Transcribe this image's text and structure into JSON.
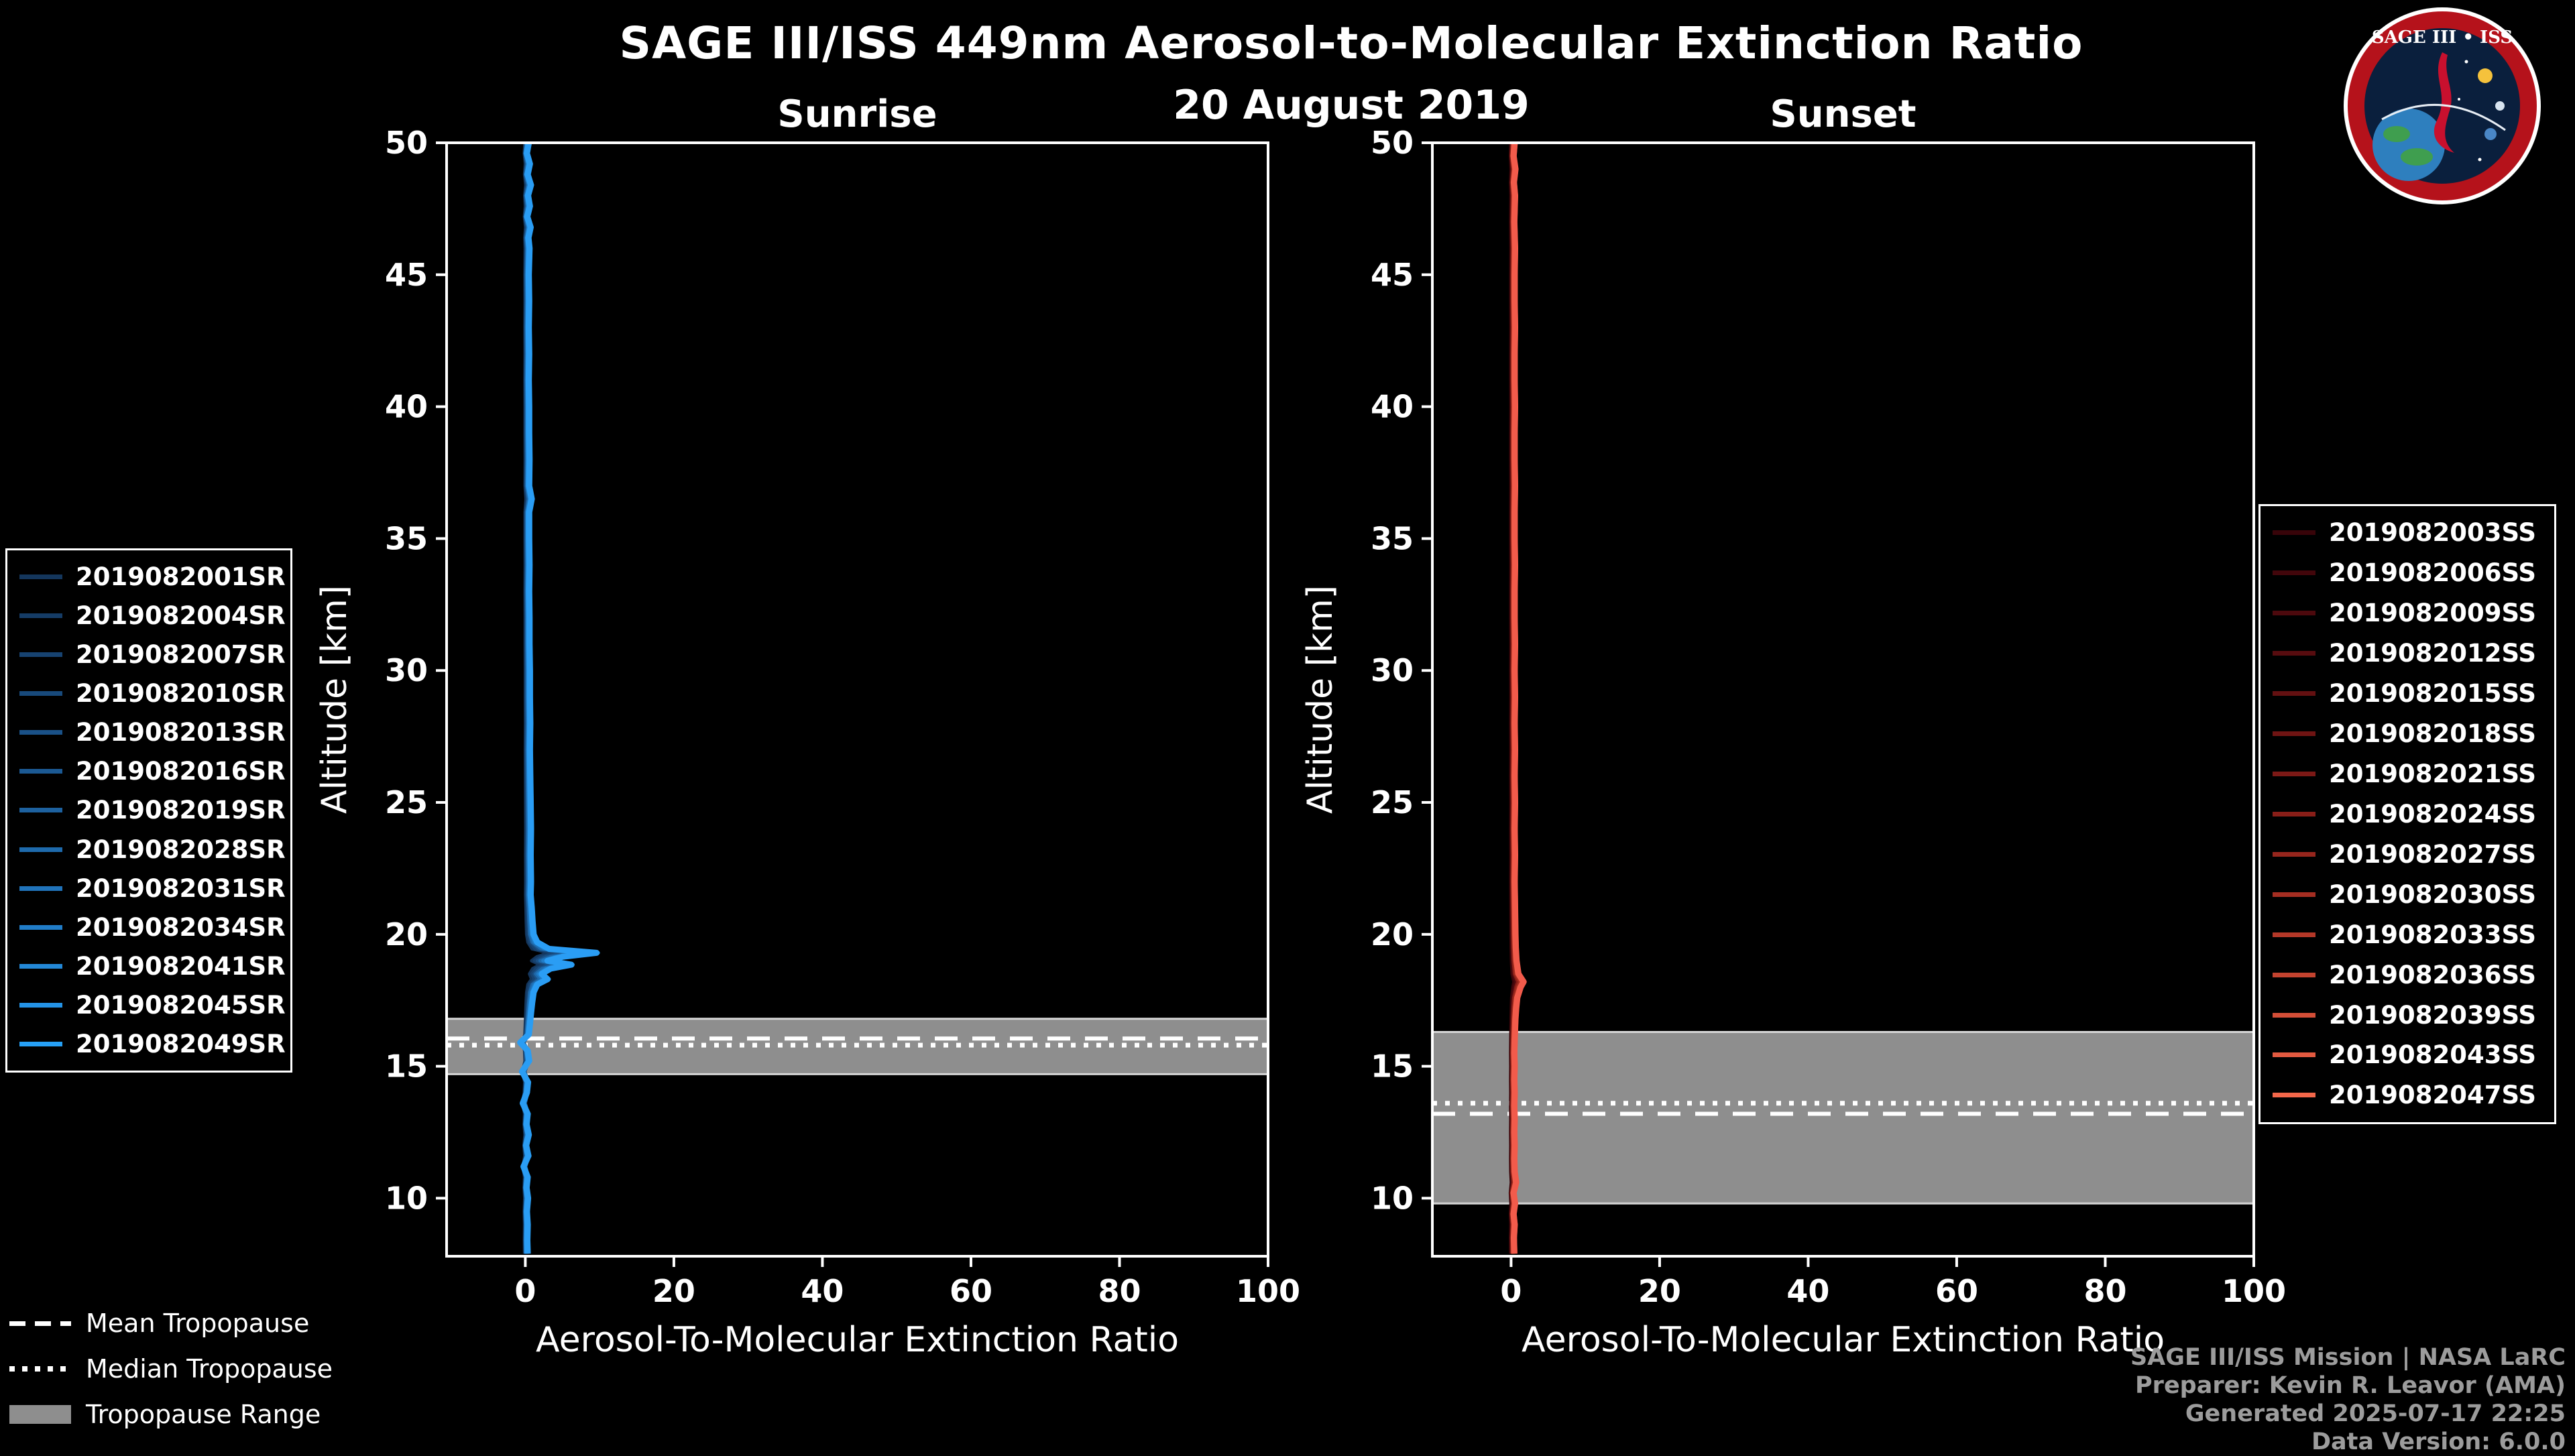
{
  "title": "SAGE III/ISS 449nm Aerosol-to-Molecular Extinction Ratio",
  "date": "20 August 2019",
  "logo": {
    "text": "SAGE III • ISS"
  },
  "tropopause_legend": [
    {
      "label": "Mean Tropopause",
      "style": "dashed"
    },
    {
      "label": "Median Tropopause",
      "style": "dotted"
    },
    {
      "label": "Tropopause Range",
      "style": "band"
    }
  ],
  "footer": {
    "line1": "SAGE III/ISS Mission | NASA LaRC",
    "line2": "Preparer: Kevin R. Leavor (AMA)",
    "line3": "Generated 2025-07-17 22:25",
    "line4": "Data Version: 6.0.0"
  },
  "chart_data": [
    {
      "type": "line",
      "panel": "Sunrise",
      "xlabel": "Aerosol-To-Molecular Extinction Ratio",
      "ylabel": "Altitude [km]",
      "xlim": [
        -10.6,
        100
      ],
      "ylim": [
        7.8,
        50
      ],
      "xticks": [
        0,
        20,
        40,
        60,
        80,
        100
      ],
      "yticks": [
        10,
        15,
        20,
        25,
        30,
        35,
        40,
        45,
        50
      ],
      "band_color": "#8e8e8e",
      "line_color": "#2a9df4",
      "tropopause": {
        "mean": 16.05,
        "median": 15.8,
        "range": [
          14.7,
          16.8
        ]
      },
      "series": [
        {
          "name": "2019082001SR",
          "color": "#14365c"
        },
        {
          "name": "2019082004SR",
          "color": "#153c66"
        },
        {
          "name": "2019082007SR",
          "color": "#174371"
        },
        {
          "name": "2019082010SR",
          "color": "#184a7c"
        },
        {
          "name": "2019082013SR",
          "color": "#1a5187"
        },
        {
          "name": "2019082016SR",
          "color": "#1b5993"
        },
        {
          "name": "2019082019SR",
          "color": "#1d619f"
        },
        {
          "name": "2019082028SR",
          "color": "#1e6aac"
        },
        {
          "name": "2019082031SR",
          "color": "#2073ba"
        },
        {
          "name": "2019082034SR",
          "color": "#217dc8"
        },
        {
          "name": "2019082041SR",
          "color": "#2388d7"
        },
        {
          "name": "2019082045SR",
          "color": "#2493e6"
        },
        {
          "name": "2019082049SR",
          "color": "#26a0f5"
        }
      ],
      "profile": [
        [
          50,
          0.45
        ],
        [
          49.6,
          0.2
        ],
        [
          49.2,
          0.6
        ],
        [
          48.8,
          0.3
        ],
        [
          48.4,
          0.75
        ],
        [
          48,
          0.35
        ],
        [
          47.6,
          0.6
        ],
        [
          47.2,
          0.25
        ],
        [
          46.8,
          0.7
        ],
        [
          46.4,
          0.4
        ],
        [
          46,
          0.55
        ],
        [
          45,
          0.45
        ],
        [
          44,
          0.5
        ],
        [
          43,
          0.45
        ],
        [
          42,
          0.5
        ],
        [
          41,
          0.45
        ],
        [
          40,
          0.5
        ],
        [
          39,
          0.5
        ],
        [
          38,
          0.55
        ],
        [
          37,
          0.5
        ],
        [
          36.5,
          0.85
        ],
        [
          36,
          0.5
        ],
        [
          35,
          0.5
        ],
        [
          34,
          0.55
        ],
        [
          33,
          0.5
        ],
        [
          32,
          0.55
        ],
        [
          31,
          0.55
        ],
        [
          30,
          0.6
        ],
        [
          29,
          0.6
        ],
        [
          28,
          0.65
        ],
        [
          27,
          0.6
        ],
        [
          26,
          0.65
        ],
        [
          25,
          0.7
        ],
        [
          24,
          0.75
        ],
        [
          23,
          0.7
        ],
        [
          22,
          0.75
        ],
        [
          21.5,
          0.7
        ],
        [
          21,
          0.85
        ],
        [
          20.5,
          0.95
        ],
        [
          20,
          1.1
        ],
        [
          19.7,
          1.6
        ],
        [
          19.45,
          3.2
        ],
        [
          19.3,
          9.6
        ],
        [
          19.15,
          5.0
        ],
        [
          19,
          3.0
        ],
        [
          18.85,
          6.2
        ],
        [
          18.7,
          3.4
        ],
        [
          18.5,
          2.2
        ],
        [
          18.3,
          3.0
        ],
        [
          18.1,
          1.6
        ],
        [
          17.8,
          1.1
        ],
        [
          17.4,
          0.9
        ],
        [
          17,
          0.75
        ],
        [
          16.6,
          0.6
        ],
        [
          16.2,
          0.45
        ],
        [
          15.9,
          -0.7
        ],
        [
          15.6,
          0.3
        ],
        [
          15.2,
          0.5
        ],
        [
          14.8,
          -0.45
        ],
        [
          14.4,
          0.35
        ],
        [
          14,
          0.2
        ],
        [
          13.6,
          -0.35
        ],
        [
          13.2,
          0.3
        ],
        [
          12.8,
          0.15
        ],
        [
          12.4,
          0.45
        ],
        [
          12,
          0.1
        ],
        [
          11.6,
          0.4
        ],
        [
          11.2,
          -0.25
        ],
        [
          10.8,
          0.3
        ],
        [
          10.4,
          0.15
        ],
        [
          10,
          0.35
        ],
        [
          9.5,
          0.2
        ],
        [
          9,
          0.3
        ],
        [
          8.4,
          0.25
        ],
        [
          7.9,
          0.3
        ]
      ]
    },
    {
      "type": "line",
      "panel": "Sunset",
      "xlabel": "Aerosol-To-Molecular Extinction Ratio",
      "ylabel": "Altitude [km]",
      "xlim": [
        -10.6,
        100
      ],
      "ylim": [
        7.8,
        50
      ],
      "xticks": [
        0,
        20,
        40,
        60,
        80,
        100
      ],
      "yticks": [
        10,
        15,
        20,
        25,
        30,
        35,
        40,
        45,
        50
      ],
      "band_color": "#8e8e8e",
      "line_color": "#f25b4b",
      "tropopause": {
        "mean": 13.2,
        "median": 13.6,
        "range": [
          9.8,
          16.3
        ]
      },
      "series": [
        {
          "name": "2019082003SS",
          "color": "#380409"
        },
        {
          "name": "2019082006SS",
          "color": "#42060b"
        },
        {
          "name": "2019082009SS",
          "color": "#4c090d"
        },
        {
          "name": "2019082012SS",
          "color": "#570c0f"
        },
        {
          "name": "2019082015SS",
          "color": "#631011"
        },
        {
          "name": "2019082018SS",
          "color": "#6f1413"
        },
        {
          "name": "2019082021SS",
          "color": "#7c1916"
        },
        {
          "name": "2019082024SS",
          "color": "#891e18"
        },
        {
          "name": "2019082027SS",
          "color": "#97261d"
        },
        {
          "name": "2019082030SS",
          "color": "#a52e22"
        },
        {
          "name": "2019082033SS",
          "color": "#b43828"
        },
        {
          "name": "2019082036SS",
          "color": "#c3432f"
        },
        {
          "name": "2019082039SS",
          "color": "#d34e37"
        },
        {
          "name": "2019082043SS",
          "color": "#e35a40"
        },
        {
          "name": "2019082047SS",
          "color": "#f3674a"
        }
      ],
      "profile": [
        [
          50,
          0.5
        ],
        [
          49.5,
          0.35
        ],
        [
          49,
          0.6
        ],
        [
          48.5,
          0.4
        ],
        [
          48,
          0.55
        ],
        [
          47,
          0.45
        ],
        [
          46,
          0.55
        ],
        [
          45,
          0.5
        ],
        [
          44,
          0.5
        ],
        [
          43,
          0.55
        ],
        [
          42,
          0.5
        ],
        [
          41,
          0.5
        ],
        [
          40,
          0.55
        ],
        [
          39,
          0.5
        ],
        [
          38,
          0.5
        ],
        [
          37,
          0.55
        ],
        [
          36,
          0.5
        ],
        [
          35,
          0.5
        ],
        [
          34,
          0.55
        ],
        [
          33,
          0.5
        ],
        [
          32,
          0.5
        ],
        [
          31,
          0.55
        ],
        [
          30,
          0.5
        ],
        [
          29,
          0.55
        ],
        [
          28,
          0.5
        ],
        [
          27,
          0.55
        ],
        [
          26,
          0.5
        ],
        [
          25,
          0.55
        ],
        [
          24,
          0.5
        ],
        [
          23,
          0.55
        ],
        [
          22,
          0.5
        ],
        [
          21,
          0.55
        ],
        [
          20,
          0.6
        ],
        [
          19.5,
          0.65
        ],
        [
          19,
          0.75
        ],
        [
          18.5,
          1.0
        ],
        [
          18.2,
          1.7
        ],
        [
          18,
          1.3
        ],
        [
          17.6,
          0.85
        ],
        [
          17.2,
          0.7
        ],
        [
          16.8,
          0.6
        ],
        [
          16.4,
          0.55
        ],
        [
          16,
          0.5
        ],
        [
          15.5,
          0.45
        ],
        [
          15,
          0.5
        ],
        [
          14.5,
          0.45
        ],
        [
          14,
          0.5
        ],
        [
          13.5,
          0.45
        ],
        [
          13,
          0.5
        ],
        [
          12.5,
          0.45
        ],
        [
          12,
          0.5
        ],
        [
          11.5,
          0.45
        ],
        [
          11,
          0.5
        ],
        [
          10.6,
          0.7
        ],
        [
          10.2,
          0.35
        ],
        [
          9.8,
          0.55
        ],
        [
          9.4,
          0.35
        ],
        [
          9,
          0.5
        ],
        [
          8.5,
          0.4
        ],
        [
          7.9,
          0.45
        ]
      ]
    }
  ]
}
